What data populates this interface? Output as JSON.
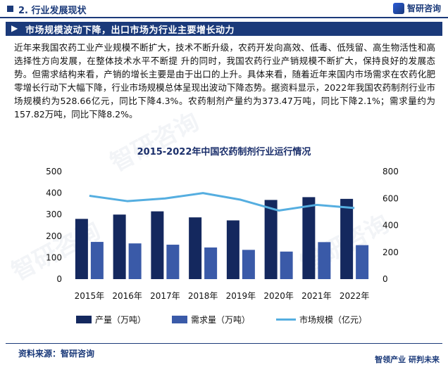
{
  "header": {
    "section": "2. 行业发展现状",
    "brand": "智研咨询"
  },
  "banner": {
    "title": "市场规模波动下降，出口市场为行业主要增长动力"
  },
  "paragraph": "近年来我国农药工业产业规模不断扩大，技术不断升级，农药开发向高效、低毒、低残留、高生物活性和高选择性方向发展，在整体技术水平不断提 升的同时，我国农药行业产销规模不断扩大，保持良好的发展态势。但需求结构来看，产销的增长主要是由于出口的上升。具体来看，随着近年来国内市场需求在农药化肥零增长行动下大幅下降，行业市场规模总体呈现出波动下降态势。据资料显示，2022年我国农药制剂行业市场规模约为528.66亿元，同比下降4.3%。农药制剂产量约为373.47万吨，同比下降2.1%；需求量约为157.82万吨，同比下降8.2%。",
  "watermark": "智研咨询",
  "chart_data": {
    "type": "bar",
    "title": "2015-2022年中国农药制剂行业运行情况",
    "categories": [
      "2015年",
      "2016年",
      "2017年",
      "2018年",
      "2019年",
      "2020年",
      "2021年",
      "2022年"
    ],
    "left_axis": {
      "min": 0,
      "max": 500,
      "ticks": [
        0,
        100,
        200,
        300,
        400,
        500
      ]
    },
    "right_axis": {
      "min": 0,
      "max": 800,
      "ticks": [
        0,
        200,
        400,
        600,
        800
      ]
    },
    "series": [
      {
        "name": "产量（万吨）",
        "kind": "bar",
        "axis": "left",
        "color": "#14285e",
        "values": [
          280,
          300,
          315,
          287,
          273,
          368,
          381,
          373
        ]
      },
      {
        "name": "需求量（万吨）",
        "kind": "bar",
        "axis": "left",
        "color": "#3a5aa8",
        "values": [
          173,
          166,
          160,
          147,
          136,
          128,
          172,
          158
        ]
      },
      {
        "name": "市场规模（亿元）",
        "kind": "line",
        "axis": "right",
        "color": "#55aee0",
        "values": [
          620,
          580,
          600,
          640,
          590,
          510,
          552,
          529
        ]
      }
    ],
    "legend_position": "bottom"
  },
  "source": "资料来源：智研咨询",
  "footer_brand": "智领产业  研判未来"
}
